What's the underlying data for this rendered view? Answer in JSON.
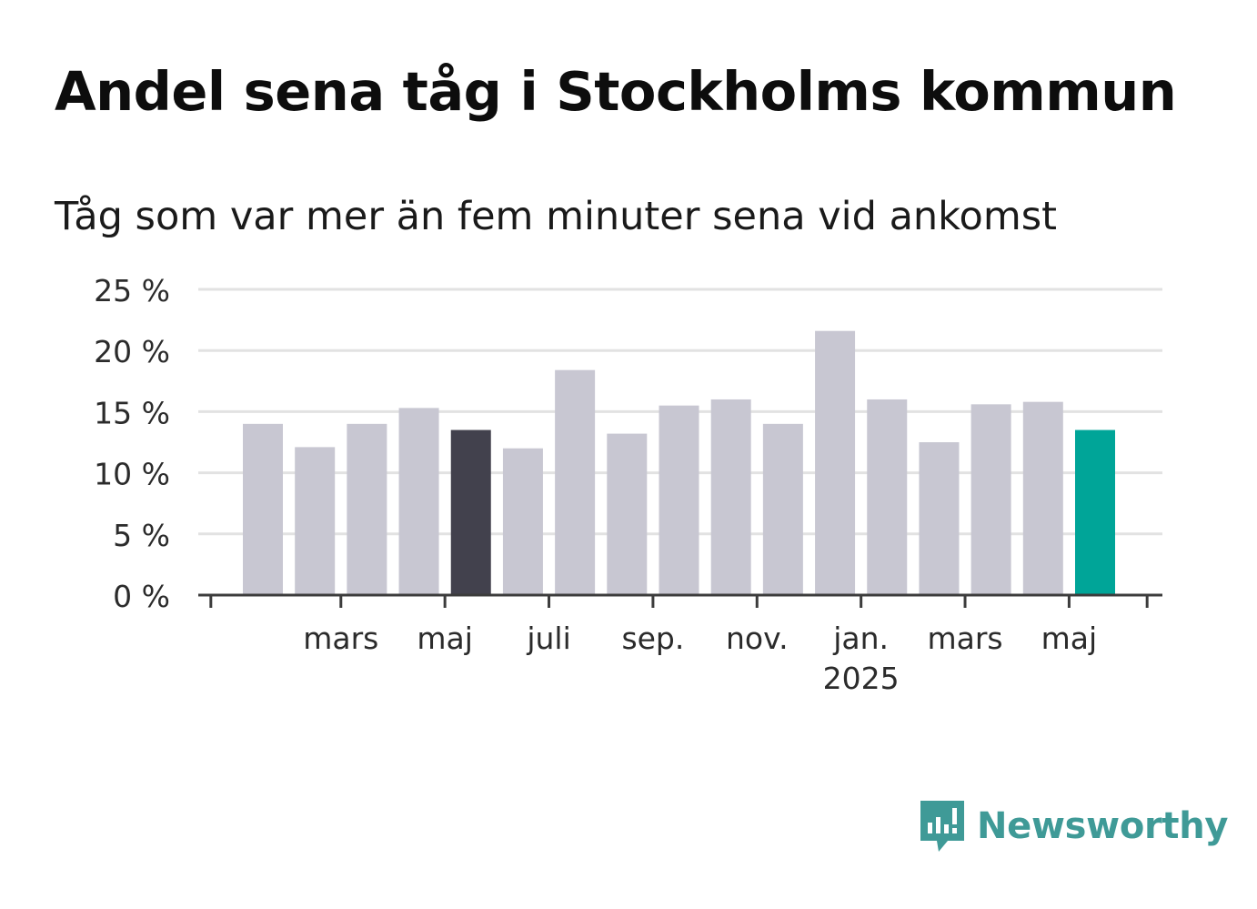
{
  "header": {
    "title": "Andel sena tåg i Stockholms kommun",
    "subtitle": "Tåg som var mer än fem minuter sena vid ankomst"
  },
  "chart_data": {
    "type": "bar",
    "title": "Andel sena tåg i Stockholms kommun",
    "subtitle": "Tåg som var mer än fem minuter sena vid ankomst",
    "xlabel": "",
    "ylabel": "",
    "categories": [
      "2024-02",
      "2024-03",
      "2024-04",
      "2024-05",
      "2024-06",
      "2024-07",
      "2024-08",
      "2024-09",
      "2024-10",
      "2024-11",
      "2024-12",
      "2025-01",
      "2025-02",
      "2025-03",
      "2025-04",
      "2025-05",
      "2025-06"
    ],
    "values": [
      14.0,
      12.1,
      14.0,
      15.3,
      13.5,
      12.0,
      18.4,
      13.2,
      15.5,
      16.0,
      14.0,
      21.6,
      16.0,
      12.5,
      15.6,
      15.8,
      13.5
    ],
    "ylim": [
      0,
      25
    ],
    "yticks": [
      0,
      5,
      10,
      15,
      20,
      25
    ],
    "ytick_labels": [
      "0 %",
      "5 %",
      "10 %",
      "15 %",
      "20 %",
      "25 %"
    ],
    "xtick_labels": [
      {
        "category": "2024-03",
        "label": "mars",
        "sub": ""
      },
      {
        "category": "2024-05",
        "label": "maj",
        "sub": ""
      },
      {
        "category": "2024-07",
        "label": "juli",
        "sub": ""
      },
      {
        "category": "2024-09",
        "label": "sep.",
        "sub": ""
      },
      {
        "category": "2024-11",
        "label": "nov.",
        "sub": ""
      },
      {
        "category": "2025-01",
        "label": "jan.",
        "sub": "2025"
      },
      {
        "category": "2025-03",
        "label": "mars",
        "sub": ""
      },
      {
        "category": "2025-05",
        "label": "maj",
        "sub": ""
      }
    ],
    "grid": true,
    "colors": {
      "default": "#c8c7d2",
      "highlight_dark": "#42414d",
      "highlight_latest": "#00a598",
      "grid": "#e2e2e2",
      "axis": "#3c3c3c"
    },
    "highlights": {
      "2024-06": "highlight_dark",
      "2025-06": "highlight_latest"
    }
  },
  "brand": {
    "name": "Newsworthy",
    "logo_icon": "newsworthy-logo-icon",
    "color": "#3f9a97"
  }
}
